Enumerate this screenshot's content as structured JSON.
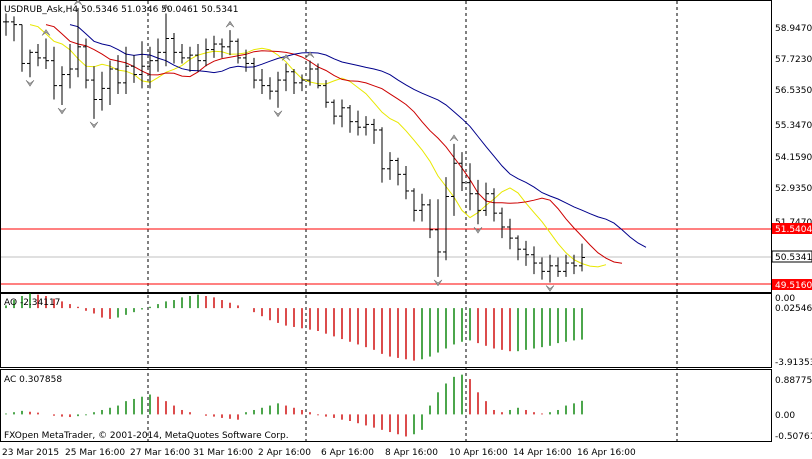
{
  "header": {
    "main": "USDRUB_Ask,H4  50.5346 51.0346 50.0461 50.5341",
    "ao": "AO -2.34117",
    "ac": "AC 0.307858",
    "copyright": "FXOpen MetaTrader, © 2001-2014, MetaQuotes Software Corp."
  },
  "time_labels": [
    "23 Mar 2015",
    "25 Mar 16:00",
    "27 Mar 16:00",
    "31 Mar 16:00",
    "2 Apr 16:00",
    "6 Apr 16:00",
    "8 Apr 16:00",
    "10 Apr 16:00",
    "14 Apr 16:00",
    "16 Apr 16:00"
  ],
  "main_axis": [
    "58.9470",
    "57.7230",
    "56.5350",
    "55.3470",
    "54.1590",
    "52.9350",
    "51.7470"
  ],
  "price_tags": {
    "upper_line": {
      "text": "51.5404",
      "color": "#ff0000"
    },
    "current": {
      "text": "50.5341",
      "color": "#ffffff"
    },
    "lower_line": {
      "text": "49.5160",
      "color": "#ff0000"
    }
  },
  "ao_axis": [
    "0.00",
    "0.02546",
    "-3.91353"
  ],
  "ac_axis": [
    "0.887752",
    "0.00",
    "-0.507614"
  ],
  "colors": {
    "ma_fast": "#e8e800",
    "ma_mid": "#cc0000",
    "ma_slow": "#00008b",
    "up": "#007f00",
    "down": "#cc0000",
    "hline": "#ff0000"
  },
  "chart_data": [
    {
      "type": "line",
      "title": "USDRUB_Ask,H4",
      "bars": [
        [
          59.0,
          59.3,
          58.5,
          59.0
        ],
        [
          59.0,
          59.2,
          58.3,
          58.9
        ],
        [
          58.9,
          58.9,
          57.2,
          57.5
        ],
        [
          57.5,
          58.0,
          57.0,
          57.9
        ],
        [
          57.9,
          58.2,
          57.4,
          57.7
        ],
        [
          57.7,
          58.4,
          57.3,
          57.6
        ],
        [
          57.6,
          58.1,
          56.2,
          56.7
        ],
        [
          56.7,
          57.4,
          56.0,
          57.1
        ],
        [
          57.1,
          58.2,
          56.6,
          57.3
        ],
        [
          57.3,
          59.5,
          57.0,
          58.1
        ],
        [
          58.1,
          58.4,
          56.6,
          56.9
        ],
        [
          56.9,
          57.4,
          55.5,
          56.2
        ],
        [
          56.2,
          57.2,
          55.8,
          56.6
        ],
        [
          56.6,
          57.6,
          56.0,
          57.3
        ],
        [
          57.3,
          57.8,
          56.4,
          56.8
        ],
        [
          56.8,
          58.1,
          56.4,
          57.4
        ],
        [
          57.4,
          57.8,
          56.8,
          57.1
        ],
        [
          57.1,
          58.3,
          56.6,
          57.4
        ],
        [
          57.4,
          58.1,
          56.6,
          57.6
        ],
        [
          57.6,
          58.4,
          57.2,
          57.9
        ],
        [
          57.9,
          59.3,
          57.4,
          58.4
        ],
        [
          58.4,
          58.6,
          57.5,
          57.9
        ],
        [
          57.9,
          58.2,
          57.5,
          57.7
        ],
        [
          57.7,
          58.1,
          57.2,
          57.8
        ],
        [
          57.8,
          58.2,
          57.2,
          57.6
        ],
        [
          57.6,
          58.4,
          57.4,
          58.0
        ],
        [
          58.0,
          58.5,
          57.7,
          58.2
        ],
        [
          58.2,
          58.4,
          57.7,
          58.1
        ],
        [
          58.1,
          58.7,
          57.8,
          58.3
        ],
        [
          58.3,
          58.4,
          57.5,
          57.7
        ],
        [
          57.7,
          58.0,
          57.2,
          57.5
        ],
        [
          57.5,
          57.7,
          56.6,
          56.9
        ],
        [
          56.9,
          57.3,
          56.4,
          56.7
        ],
        [
          56.7,
          57.0,
          56.2,
          56.5
        ],
        [
          56.5,
          57.2,
          55.9,
          56.9
        ],
        [
          56.9,
          57.5,
          56.5,
          57.2
        ],
        [
          57.2,
          57.3,
          56.4,
          56.8
        ],
        [
          56.8,
          57.1,
          56.5,
          56.9
        ],
        [
          56.9,
          57.6,
          56.7,
          57.3
        ],
        [
          57.3,
          57.5,
          56.6,
          56.7
        ],
        [
          56.7,
          56.9,
          55.9,
          56.1
        ],
        [
          56.1,
          56.2,
          55.3,
          55.6
        ],
        [
          55.6,
          56.2,
          55.2,
          55.9
        ],
        [
          55.9,
          56.0,
          55.0,
          55.4
        ],
        [
          55.4,
          55.8,
          54.9,
          55.2
        ],
        [
          55.2,
          55.6,
          54.9,
          55.3
        ],
        [
          55.3,
          55.5,
          54.6,
          55.1
        ],
        [
          55.1,
          55.2,
          53.2,
          53.7
        ],
        [
          53.7,
          54.3,
          53.3,
          54.0
        ],
        [
          54.0,
          54.1,
          53.1,
          53.5
        ],
        [
          53.5,
          53.8,
          52.6,
          52.9
        ],
        [
          52.9,
          53.0,
          51.8,
          52.2
        ],
        [
          52.2,
          52.8,
          51.8,
          52.4
        ],
        [
          52.4,
          52.6,
          51.2,
          51.5
        ],
        [
          51.5,
          52.6,
          49.8,
          50.7
        ],
        [
          50.7,
          53.4,
          50.4,
          52.7
        ],
        [
          52.7,
          54.6,
          52.0,
          53.9
        ],
        [
          53.9,
          54.3,
          52.9,
          53.2
        ],
        [
          53.2,
          53.9,
          52.2,
          52.8
        ],
        [
          52.8,
          53.3,
          51.7,
          52.2
        ],
        [
          52.2,
          53.2,
          52.0,
          52.8
        ],
        [
          52.8,
          53.0,
          51.8,
          52.1
        ],
        [
          52.1,
          52.3,
          51.2,
          51.6
        ],
        [
          51.6,
          51.9,
          50.8,
          51.2
        ],
        [
          51.2,
          51.3,
          50.4,
          50.8
        ],
        [
          50.8,
          51.1,
          50.2,
          50.6
        ],
        [
          50.6,
          50.9,
          49.9,
          50.3
        ],
        [
          50.3,
          50.5,
          49.7,
          50.0
        ],
        [
          50.0,
          50.6,
          49.6,
          50.2
        ],
        [
          50.2,
          50.5,
          49.8,
          50.0
        ],
        [
          50.0,
          50.6,
          49.8,
          50.3
        ],
        [
          50.3,
          50.6,
          49.9,
          50.2
        ],
        [
          50.2,
          51.0,
          50.0,
          50.5
        ]
      ],
      "ylim": [
        49.4,
        59.5
      ]
    },
    {
      "type": "bar",
      "title": "AO",
      "values": [
        0.2,
        0.6,
        0.9,
        1.1,
        1.0,
        0.9,
        0.7,
        0.5,
        0.3,
        0.1,
        -0.2,
        -0.4,
        -0.7,
        -0.8,
        -0.7,
        -0.5,
        -0.3,
        -0.1,
        0.1,
        0.3,
        0.5,
        0.6,
        0.8,
        0.9,
        1.0,
        0.9,
        0.8,
        0.6,
        0.4,
        0.2,
        0.0,
        -0.3,
        -0.6,
        -0.9,
        -1.1,
        -1.3,
        -1.4,
        -1.5,
        -1.6,
        -1.7,
        -1.9,
        -2.1,
        -2.3,
        -2.5,
        -2.7,
        -2.9,
        -3.1,
        -3.4,
        -3.6,
        -3.7,
        -3.8,
        -3.9,
        -3.8,
        -3.6,
        -3.3,
        -3.0,
        -2.7,
        -2.5,
        -2.4,
        -2.6,
        -2.8,
        -3.0,
        -3.1,
        -3.2,
        -3.2,
        -3.1,
        -3.0,
        -2.9,
        -2.8,
        -2.6,
        -2.5,
        -2.4,
        -2.34
      ],
      "ylim": [
        -4.3,
        0.9
      ]
    },
    {
      "type": "bar",
      "title": "AC",
      "values": [
        0.02,
        0.05,
        0.08,
        0.06,
        0.04,
        0.0,
        -0.03,
        -0.05,
        -0.06,
        -0.04,
        -0.02,
        0.05,
        0.1,
        0.15,
        0.2,
        0.3,
        0.35,
        0.4,
        0.45,
        0.4,
        0.3,
        0.2,
        0.1,
        0.05,
        0.0,
        -0.03,
        -0.05,
        -0.08,
        -0.1,
        -0.12,
        0.05,
        0.1,
        0.15,
        0.2,
        0.25,
        0.2,
        0.15,
        0.1,
        0.05,
        -0.02,
        -0.05,
        -0.08,
        -0.12,
        -0.15,
        -0.2,
        -0.25,
        -0.3,
        -0.35,
        -0.4,
        -0.45,
        -0.5,
        -0.45,
        -0.35,
        0.2,
        0.5,
        0.7,
        0.85,
        0.9,
        0.8,
        0.5,
        0.3,
        0.1,
        0.05,
        0.1,
        0.15,
        0.1,
        0.05,
        0.02,
        0.05,
        0.1,
        0.2,
        0.25,
        0.307858
      ],
      "ylim": [
        -0.58,
        0.96
      ]
    }
  ]
}
